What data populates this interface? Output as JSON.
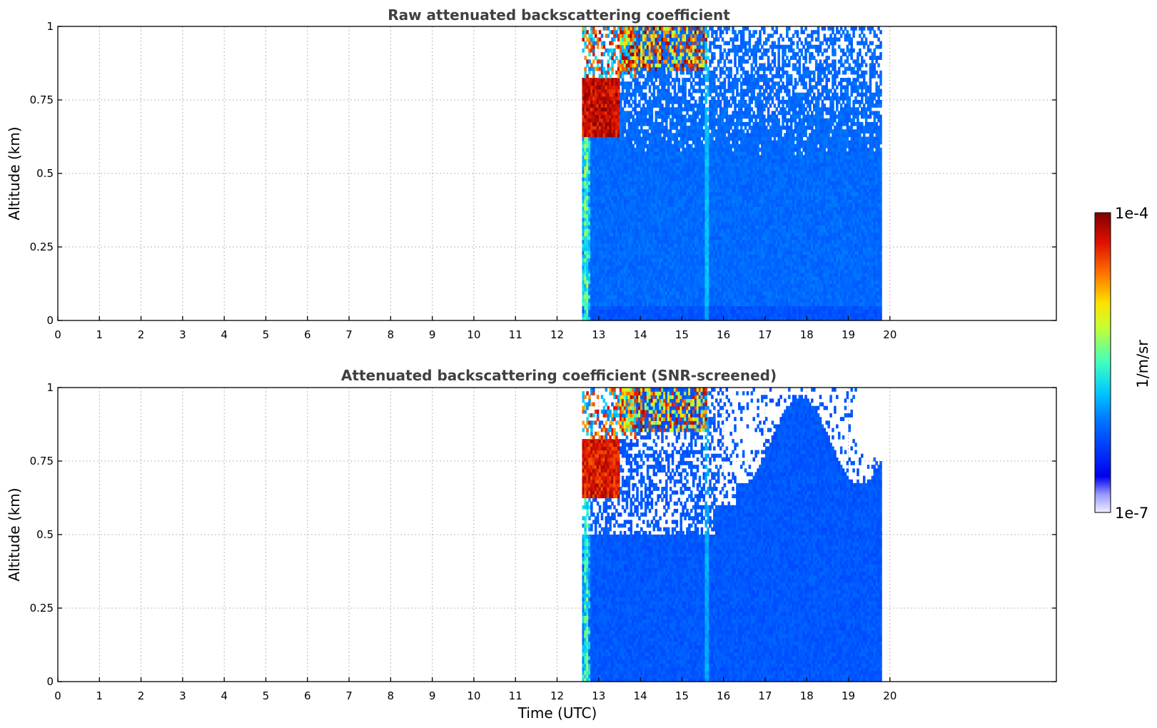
{
  "chart_data": [
    {
      "type": "heatmap",
      "title": "Raw attenuated backscattering coefficient",
      "xlabel": "",
      "ylabel": "Altitude (km)",
      "xlim": [
        0,
        24
      ],
      "ylim": [
        0,
        1
      ],
      "xticks": [
        0,
        1,
        2,
        3,
        4,
        5,
        6,
        7,
        8,
        9,
        10,
        11,
        12,
        13,
        14,
        15,
        16,
        17,
        18,
        19,
        20
      ],
      "xtick_labels": [
        "0",
        "1",
        "2",
        "3",
        "4",
        "5",
        "6",
        "7",
        "8",
        "9",
        "10",
        "11",
        "12",
        "13",
        "14",
        "15",
        "16",
        "17",
        "18",
        "19",
        "20"
      ],
      "yticks": [
        0,
        0.25,
        0.5,
        0.75,
        1
      ],
      "ytick_labels": [
        "0",
        "0.25",
        "0.5",
        "0.75",
        "1"
      ],
      "grid": true,
      "data_time_range": [
        12.6,
        19.8
      ],
      "cloud_time_range": [
        12.6,
        13.5
      ],
      "cloud_altitude_range": [
        0.62,
        0.82
      ],
      "upper_echo_time_range": [
        13.5,
        15.6
      ],
      "upper_echo_altitude_range": [
        0.85,
        1.0
      ],
      "screened": false
    },
    {
      "type": "heatmap",
      "title": "Attenuated backscattering coefficient (SNR-screened)",
      "xlabel": "Time (UTC)",
      "ylabel": "Altitude (km)",
      "xlim": [
        0,
        24
      ],
      "ylim": [
        0,
        1
      ],
      "xticks": [
        0,
        1,
        2,
        3,
        4,
        5,
        6,
        7,
        8,
        9,
        10,
        11,
        12,
        13,
        14,
        15,
        16,
        17,
        18,
        19,
        20
      ],
      "xtick_labels": [
        "0",
        "1",
        "2",
        "3",
        "4",
        "5",
        "6",
        "7",
        "8",
        "9",
        "10",
        "11",
        "12",
        "13",
        "14",
        "15",
        "16",
        "17",
        "18",
        "19",
        "20"
      ],
      "yticks": [
        0,
        0.25,
        0.5,
        0.75,
        1
      ],
      "ytick_labels": [
        "0",
        "0.25",
        "0.5",
        "0.75",
        "1"
      ],
      "grid": true,
      "data_time_range": [
        12.6,
        19.8
      ],
      "cloud_time_range": [
        12.6,
        13.5
      ],
      "cloud_altitude_range": [
        0.62,
        0.82
      ],
      "upper_echo_time_range": [
        13.5,
        15.6
      ],
      "upper_echo_altitude_range": [
        0.85,
        1.0
      ],
      "screened": true
    }
  ],
  "colorbar": {
    "label": "1/m/sr",
    "max_label": "1e-4",
    "min_label": "1e-7",
    "scale": "log",
    "range": [
      1e-07,
      0.0001
    ],
    "colormap": "jet",
    "placement": "right"
  }
}
